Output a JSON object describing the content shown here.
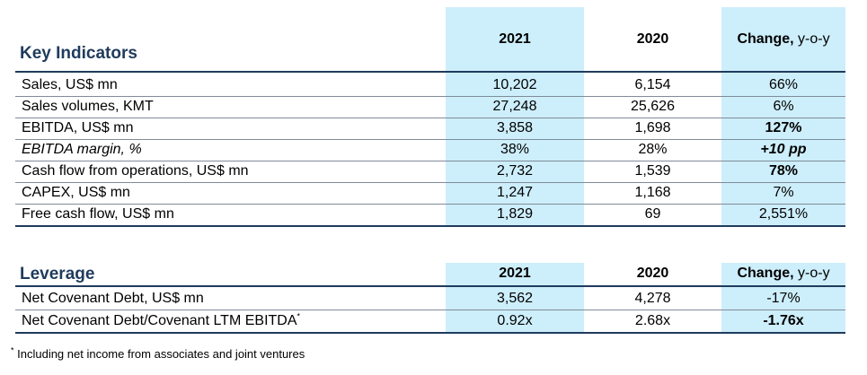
{
  "table1": {
    "title": "Key Indicators",
    "col_2021": "2021",
    "col_2020": "2020",
    "col_change_bold": "Change,",
    "col_change_rest": " y-o-y",
    "rows": [
      {
        "label": "Sales, US$ mn",
        "v2021": "10,202",
        "v2020": "6,154",
        "change": "66%",
        "change_bold": false,
        "italic": false
      },
      {
        "label": "Sales volumes, KMT",
        "v2021": "27,248",
        "v2020": "25,626",
        "change": "6%",
        "change_bold": false,
        "italic": false
      },
      {
        "label": "EBITDA, US$ mn",
        "v2021": "3,858",
        "v2020": "1,698",
        "change": "127%",
        "change_bold": true,
        "italic": false
      },
      {
        "label": "EBITDA margin, %",
        "v2021": "38%",
        "v2020": "28%",
        "change": "+10 pp",
        "change_bold": true,
        "italic": true
      },
      {
        "label": "Cash flow from operations, US$ mn",
        "v2021": "2,732",
        "v2020": "1,539",
        "change": "78%",
        "change_bold": true,
        "italic": false
      },
      {
        "label": "CAPEX, US$ mn",
        "v2021": "1,247",
        "v2020": "1,168",
        "change": "7%",
        "change_bold": false,
        "italic": false
      },
      {
        "label": "Free cash flow, US$ mn",
        "v2021": "1,829",
        "v2020": "69",
        "change": "2,551%",
        "change_bold": false,
        "italic": false
      }
    ]
  },
  "table2": {
    "title": "Leverage",
    "col_2021": "2021",
    "col_2020": "2020",
    "col_change_bold": "Change,",
    "col_change_rest": " y-o-y",
    "rows": [
      {
        "label": "Net Covenant Debt, US$ mn",
        "v2021": "3,562",
        "v2020": "4,278",
        "change": "-17%",
        "change_bold": false
      },
      {
        "label": "Net Covenant Debt/Covenant LTM EBITDA",
        "label_sup": "*",
        "v2021": "0.92x",
        "v2020": "2.68x",
        "change": "-1.76x",
        "change_bold": true
      }
    ]
  },
  "footnote": {
    "marker": "*",
    "text": " Including net income from associates and joint ventures"
  },
  "colors": {
    "highlight": "#cdeefb",
    "title_blue": "#1f3b5c",
    "rule": "#1f3b5c"
  }
}
